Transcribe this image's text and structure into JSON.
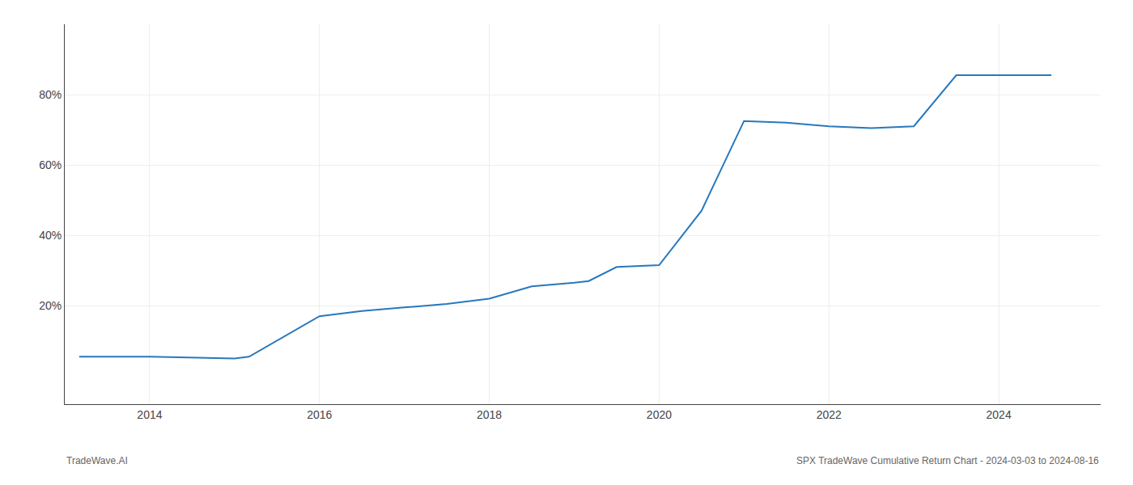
{
  "chart_data": {
    "type": "line",
    "x": [
      2013.17,
      2014.0,
      2015.0,
      2015.17,
      2016.0,
      2016.5,
      2017.0,
      2017.5,
      2018.0,
      2018.5,
      2019.0,
      2019.17,
      2019.5,
      2020.0,
      2020.5,
      2021.0,
      2021.5,
      2022.0,
      2022.5,
      2023.0,
      2023.5,
      2024.0,
      2024.62
    ],
    "values": [
      5.5,
      5.5,
      5.0,
      5.5,
      17.0,
      18.5,
      19.5,
      20.5,
      22.0,
      25.5,
      26.5,
      27.0,
      31.0,
      31.5,
      47.0,
      72.5,
      72.0,
      71.0,
      70.5,
      71.0,
      85.5,
      85.5,
      85.5
    ],
    "color": "#2878bd",
    "xlim": [
      2013.0,
      2025.2
    ],
    "xticks": [
      2014,
      2016,
      2018,
      2020,
      2022,
      2024
    ],
    "ylim": [
      -8,
      100
    ],
    "yticks": [
      {
        "value": 20,
        "label": "20%"
      },
      {
        "value": 40,
        "label": "40%"
      },
      {
        "value": 60,
        "label": "60%"
      },
      {
        "value": 80,
        "label": "80%"
      }
    ],
    "grid": true,
    "annotations": [
      "TradeWave.AI",
      "SPX TradeWave Cumulative Return Chart - 2024-03-03 to 2024-08-16"
    ]
  }
}
